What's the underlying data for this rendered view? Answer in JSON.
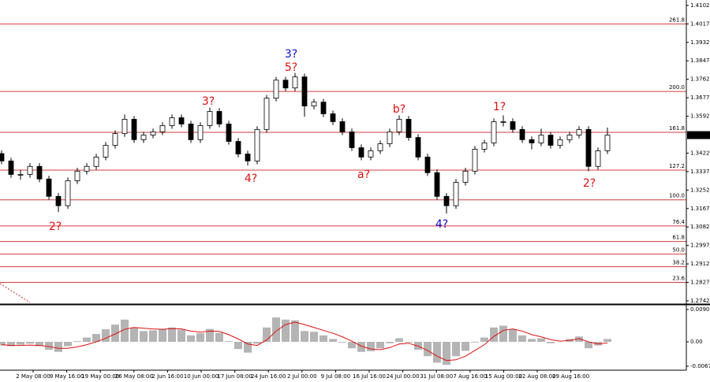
{
  "chart_data": {
    "type": "candlestick",
    "ylim": [
      1.2731,
      1.4127
    ],
    "yticks": [
      1.4102,
      1.4017,
      1.3932,
      1.3847,
      1.3762,
      1.3677,
      1.3592,
      1.3422,
      1.3337,
      1.3252,
      1.3167,
      1.3082,
      1.2997,
      1.2912,
      1.2827,
      1.2742
    ],
    "last_price": 1.3505,
    "x_labels": [
      "2 May 08:00",
      "9 May 16:00",
      "19 May 00:00",
      "26 May 08:00",
      "2 Jun 16:00",
      "10 Jun 00:00",
      "17 Jun 08:00",
      "24 Jun 16:00",
      "2 Jul 00:00",
      "9 Jul 08:00",
      "16 Jul 16:00",
      "24 Jul 00:00",
      "31 Jul 08:00",
      "7 Aug 16:00",
      "15 Aug 00:00",
      "22 Aug 08:00",
      "29 Aug 16:00"
    ],
    "open": [
      1.342,
      1.3386,
      1.3324,
      1.3324,
      1.3361,
      1.3303,
      1.3223,
      1.318,
      1.3295,
      1.3339,
      1.3361,
      1.3404,
      1.3458,
      1.3512,
      1.3578,
      1.3484,
      1.3505,
      1.352,
      1.3549,
      1.3585,
      1.3556,
      1.3484,
      1.3549,
      1.3614,
      1.3556,
      1.3476,
      1.3418,
      1.3386,
      1.3531,
      1.3675,
      1.3758,
      1.3722,
      1.3773,
      1.3639,
      1.3657,
      1.3603,
      1.3567,
      1.352,
      1.3447,
      1.3404,
      1.3433,
      1.3465,
      1.352,
      1.3578,
      1.3494,
      1.3404,
      1.3332,
      1.3223,
      1.318,
      1.3288,
      1.3339,
      1.344,
      1.3469,
      1.3567,
      1.3567,
      1.3531,
      1.3484,
      1.3469,
      1.3505,
      1.3458,
      1.3484,
      1.3505,
      1.3531,
      1.3361,
      1.3433
    ],
    "high": [
      1.3435,
      1.3401,
      1.3345,
      1.3376,
      1.3376,
      1.3318,
      1.3238,
      1.331,
      1.3354,
      1.3376,
      1.3419,
      1.3473,
      1.3527,
      1.36,
      1.3593,
      1.352,
      1.3535,
      1.3564,
      1.36,
      1.36,
      1.3571,
      1.3564,
      1.3632,
      1.3629,
      1.3571,
      1.3491,
      1.3433,
      1.3546,
      1.369,
      1.3773,
      1.3773,
      1.3791,
      1.3788,
      1.3672,
      1.3672,
      1.3618,
      1.3582,
      1.3535,
      1.3462,
      1.3448,
      1.348,
      1.3535,
      1.3596,
      1.3593,
      1.3509,
      1.3419,
      1.3347,
      1.3238,
      1.3303,
      1.3354,
      1.3455,
      1.3484,
      1.3582,
      1.3596,
      1.3582,
      1.3546,
      1.3499,
      1.3535,
      1.352,
      1.3499,
      1.352,
      1.3546,
      1.3546,
      1.3448,
      1.354
    ],
    "low": [
      1.3371,
      1.3309,
      1.33,
      1.3309,
      1.3288,
      1.3208,
      1.3151,
      1.3165,
      1.328,
      1.3324,
      1.3346,
      1.3389,
      1.3443,
      1.3497,
      1.3469,
      1.3469,
      1.349,
      1.3505,
      1.3534,
      1.3541,
      1.3469,
      1.3469,
      1.3534,
      1.3541,
      1.3461,
      1.3403,
      1.3365,
      1.3371,
      1.3516,
      1.366,
      1.3707,
      1.3707,
      1.359,
      1.3624,
      1.3588,
      1.3552,
      1.3505,
      1.3432,
      1.3389,
      1.3389,
      1.3418,
      1.345,
      1.3505,
      1.3479,
      1.3389,
      1.3317,
      1.3208,
      1.3144,
      1.3165,
      1.3273,
      1.3324,
      1.3425,
      1.3454,
      1.3545,
      1.3516,
      1.3469,
      1.344,
      1.3454,
      1.3443,
      1.3443,
      1.3469,
      1.349,
      1.3339,
      1.3346,
      1.3418
    ],
    "close": [
      1.3386,
      1.3324,
      1.3324,
      1.3361,
      1.3303,
      1.3223,
      1.318,
      1.3295,
      1.3339,
      1.3361,
      1.3404,
      1.3458,
      1.3512,
      1.3578,
      1.3484,
      1.3505,
      1.352,
      1.3549,
      1.3585,
      1.3556,
      1.3484,
      1.3549,
      1.3614,
      1.3556,
      1.3476,
      1.3418,
      1.3386,
      1.3531,
      1.3675,
      1.3758,
      1.3722,
      1.3773,
      1.3639,
      1.3657,
      1.3603,
      1.3567,
      1.352,
      1.3447,
      1.3404,
      1.3433,
      1.3465,
      1.352,
      1.3578,
      1.3494,
      1.3404,
      1.3332,
      1.3223,
      1.318,
      1.3288,
      1.3339,
      1.344,
      1.3469,
      1.3567,
      1.3567,
      1.3531,
      1.3484,
      1.3469,
      1.3505,
      1.3458,
      1.3484,
      1.3505,
      1.3531,
      1.3361,
      1.3433,
      1.3505
    ],
    "fib_color": "#d43c3c",
    "fib_levels": [
      {
        "label": "261.8",
        "value": 1.4017
      },
      {
        "label": "200.0",
        "value": 1.3706
      },
      {
        "label": "161.8",
        "value": 1.3518
      },
      {
        "label": "127.2",
        "value": 1.3344
      },
      {
        "label": "100.0",
        "value": 1.3207
      },
      {
        "label": "76.4",
        "value": 1.3087
      },
      {
        "label": "61.8",
        "value": 1.3015
      },
      {
        "label": "50.0",
        "value": 1.2957
      },
      {
        "label": "38.2",
        "value": 1.2899
      },
      {
        "label": "23.6",
        "value": 1.2827
      }
    ],
    "annotations": [
      {
        "text": "2?",
        "color": "#e01010"
      },
      {
        "text": "3?",
        "color": "#e01010"
      },
      {
        "text": "4?",
        "color": "#e01010"
      },
      {
        "text": "3?",
        "color": "#1010c8"
      },
      {
        "text": "5?",
        "color": "#e01010"
      },
      {
        "text": "a?",
        "color": "#e01010"
      },
      {
        "text": "b?",
        "color": "#e01010"
      },
      {
        "text": "4?",
        "color": "#1010c8"
      },
      {
        "text": "1?",
        "color": "#e01010"
      },
      {
        "text": "2?",
        "color": "#e01010"
      }
    ],
    "indicator": {
      "type": "macd",
      "y2lim": [
        -0.0079,
        0.0101
      ],
      "y2ticks": [
        0.00901,
        {
          "value": 0,
          "label": "0.00"
        },
        -0.00679
      ],
      "hist_color": "#b4b4b4",
      "signal_color": "#e01010",
      "values": [
        -0.001,
        -0.0012,
        -0.0008,
        -0.0005,
        -0.0012,
        -0.0022,
        -0.0028,
        -0.0012,
        0.0002,
        0.0012,
        0.0022,
        0.0035,
        0.0048,
        0.0062,
        0.004,
        0.003,
        0.0032,
        0.0036,
        0.004,
        0.0034,
        0.0018,
        0.0024,
        0.0036,
        0.0025,
        0.0002,
        -0.002,
        -0.003,
        -0.0005,
        0.004,
        0.0068,
        0.0062,
        0.006,
        0.003,
        0.0028,
        0.0018,
        0.0008,
        -0.0002,
        -0.0018,
        -0.0028,
        -0.0026,
        -0.0018,
        -0.0004,
        0.001,
        -0.0002,
        -0.0022,
        -0.004,
        -0.0058,
        -0.0064,
        -0.004,
        -0.0025,
        -0.0002,
        0.0012,
        0.004,
        0.0045,
        0.0035,
        0.0018,
        0.0008,
        0.001,
        -0.0004,
        0.0,
        0.0008,
        0.0015,
        -0.0018,
        -0.001,
        0.0008
      ],
      "signal": [
        -0.0008,
        -0.001,
        -0.001,
        -0.0009,
        -0.001,
        -0.0013,
        -0.0018,
        -0.0018,
        -0.0014,
        -0.0008,
        0.0,
        0.001,
        0.0022,
        0.0035,
        0.004,
        0.0038,
        0.0036,
        0.0035,
        0.0037,
        0.0036,
        0.003,
        0.0027,
        0.003,
        0.0029,
        0.002,
        0.0008,
        -0.0006,
        -0.001,
        0.0005,
        0.003,
        0.0048,
        0.0055,
        0.0048,
        0.004,
        0.0032,
        0.0024,
        0.0014,
        0.0002,
        -0.0012,
        -0.002,
        -0.0022,
        -0.0016,
        -0.0006,
        -0.0004,
        -0.0012,
        -0.0024,
        -0.004,
        -0.0052,
        -0.005,
        -0.004,
        -0.0024,
        -0.0008,
        0.0015,
        0.0032,
        0.0036,
        0.003,
        0.002,
        0.0014,
        0.0006,
        0.0002,
        0.0004,
        0.0009,
        0.0,
        -0.0006,
        -0.0003
      ]
    }
  }
}
